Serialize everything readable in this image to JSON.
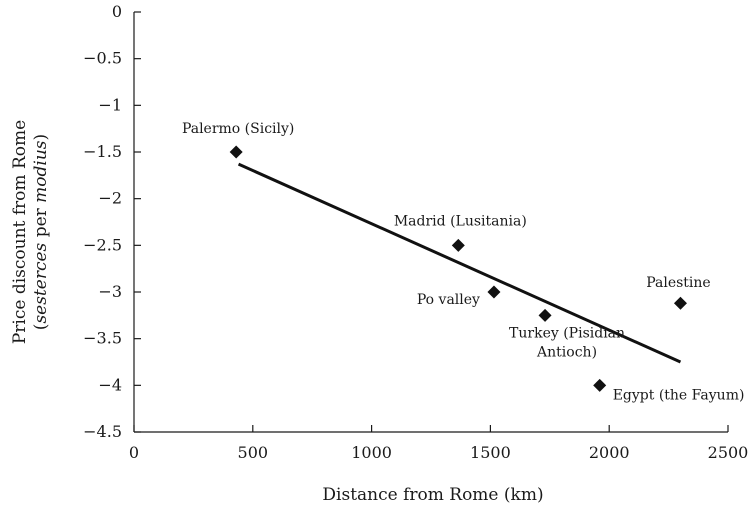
{
  "chart_data": {
    "type": "scatter",
    "xlabel": "Distance from Rome (km)",
    "ylabel_line1": "Price discount from Rome",
    "ylabel_line2": {
      "open": "(",
      "italic1": "sesterces",
      "mid": " per ",
      "italic2": "modius",
      "close": ")"
    },
    "xlim": [
      0,
      2500
    ],
    "ylim": [
      -4.5,
      0
    ],
    "xticks": [
      0,
      500,
      1000,
      1500,
      2000,
      2500
    ],
    "yticks": [
      0,
      -0.5,
      -1,
      -1.5,
      -2,
      -2.5,
      -3,
      -3.5,
      -4,
      -4.5
    ],
    "xtick_labels": [
      "0",
      "500",
      "1000",
      "1500",
      "2000",
      "2500"
    ],
    "ytick_labels": [
      "0",
      "−0.5",
      "−1",
      "−1.5",
      "−2",
      "−2.5",
      "−3",
      "−3.5",
      "−4",
      "−4.5"
    ],
    "points": [
      {
        "label": "Palermo (Sicily)",
        "x": 430,
        "y": -1.5
      },
      {
        "label": "Madrid (Lusitania)",
        "x": 1365,
        "y": -2.5
      },
      {
        "label": "Po valley",
        "x": 1515,
        "y": -3.0
      },
      {
        "label": "Turkey (Pisidian Antioch)",
        "x": 1730,
        "y": -3.25
      },
      {
        "label": "Egypt (the Fayum)",
        "x": 1960,
        "y": -4.0
      },
      {
        "label": "Palestine",
        "x": 2300,
        "y": -3.12
      }
    ],
    "trendline": {
      "x": [
        440,
        2300
      ],
      "y": [
        -1.63,
        -3.75
      ]
    },
    "grid": false,
    "legend": "none"
  }
}
